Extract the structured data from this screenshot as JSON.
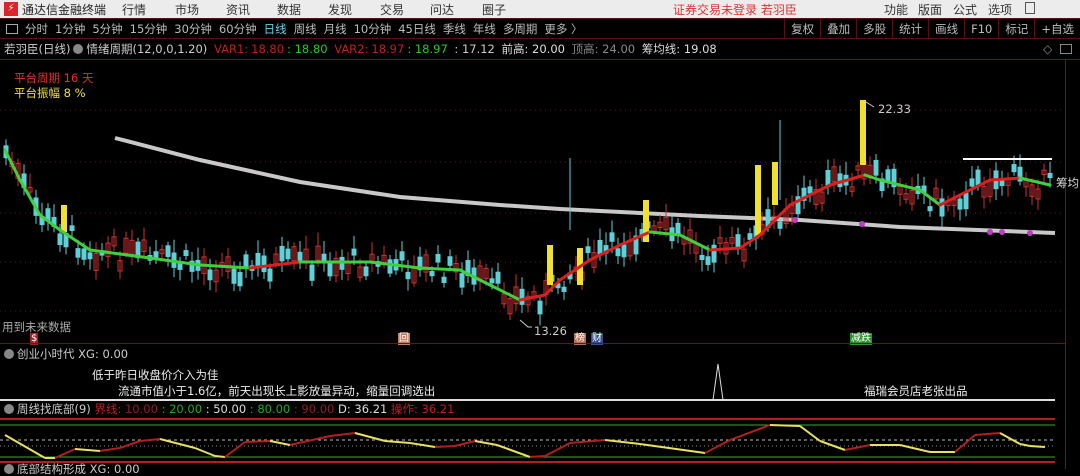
{
  "app": {
    "title": "通达信金融终端",
    "menus": [
      "行情",
      "市场",
      "资讯",
      "数据",
      "发现",
      "交易",
      "问达",
      "圈子"
    ],
    "status": "证券交易未登录  若羽臣",
    "right_menus": [
      "功能",
      "版面",
      "公式",
      "选项"
    ]
  },
  "toolbar": {
    "periods": [
      "分时",
      "1分钟",
      "5分钟",
      "15分钟",
      "30分钟",
      "60分钟",
      "日线",
      "周线",
      "月线",
      "10分钟",
      "45日线",
      "季线",
      "年线",
      "多周期",
      "更多 〉"
    ],
    "active": "日线",
    "tools": [
      "复权",
      "叠加",
      "多股",
      "统计",
      "画线",
      "F10",
      "标记",
      "+自选"
    ]
  },
  "main": {
    "stock": "若羽臣(日线)",
    "indicator": "情绪周期(12,0,0,1.20)",
    "var1_label": "VAR1:",
    "var1": "18.80",
    "var1b": ": 18.80",
    "var2_label": "VAR2:",
    "var2": "18.97",
    "var2b": ": 18.97",
    "v3": ": 17.12",
    "qiangao": "前高: 20.00",
    "dinggao": "顶高: 24.00",
    "chouma": "筹均线: 19.08",
    "platform_period": "平台周期 16 天",
    "platform_amp": "平台振幅 8 %",
    "high_label": "22.33",
    "low_label": "13.26",
    "future_note": "用到未来数据",
    "chouma_tag": "筹均",
    "signals": [
      {
        "text": "$",
        "color": "#c22"
      },
      {
        "text": "回",
        "color": "#c97"
      },
      {
        "text": "榜",
        "color": "#c97"
      },
      {
        "text": "财",
        "color": "#46a"
      },
      {
        "text": "减跌",
        "color": "#3a3"
      }
    ],
    "colors": {
      "up": "#d03030",
      "down": "#5fd0d8",
      "ma_up": "#d82020",
      "ma_down": "#3ed03e",
      "chip": "#c8c8c8",
      "limit": "#f0e030"
    }
  },
  "panel2": {
    "title": "创业小时代",
    "xg": "XG: 0.00",
    "note1": "流通市值小于1.6亿，前天出现长上影放量异动，缩量回调选出",
    "note2": "低于昨日收盘价介入为佳",
    "credit": "福瑞会员店老张出品"
  },
  "panel3": {
    "title": "周线找底部(9)",
    "jx": "界线:",
    "v1": "10.00",
    "v2": ": 20.00",
    "v3": ": 50.00",
    "v4": ": 80.00",
    "v5": ": 90.00",
    "d": "D: 36.21",
    "op_label": "操作:",
    "op": "36.21"
  },
  "panel4": {
    "title": "底部结构形成",
    "xg": "XG: 0.00"
  }
}
